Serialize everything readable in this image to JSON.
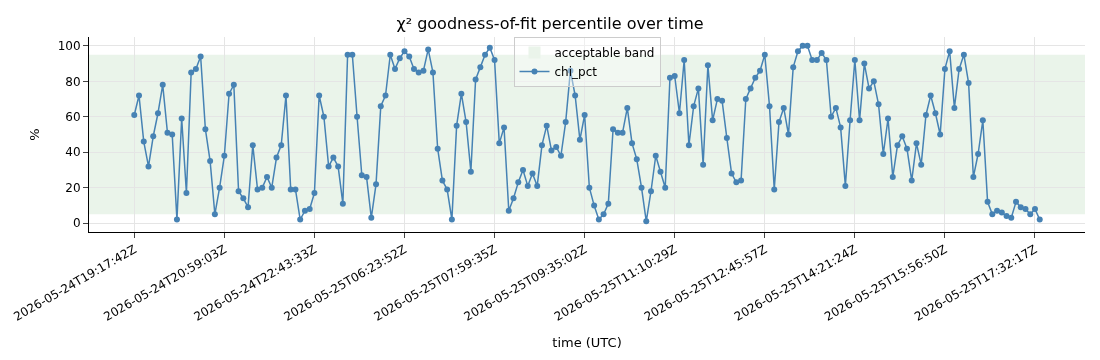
{
  "chart_data": {
    "type": "line",
    "title": "χ² goodness-of-fit percentile over time",
    "xlabel": "time (UTC)",
    "ylabel": "%",
    "categories": [
      "2026-05-24T19:17:42Z",
      null,
      null,
      null,
      null,
      null,
      null,
      null,
      null,
      null,
      null,
      null,
      null,
      null,
      null,
      null,
      null,
      null,
      null,
      "2026-05-24T20:59:03Z",
      null,
      null,
      null,
      null,
      null,
      null,
      null,
      null,
      null,
      null,
      null,
      null,
      null,
      null,
      null,
      null,
      null,
      null,
      "2026-05-24T22:43:33Z",
      null,
      null,
      null,
      null,
      null,
      null,
      null,
      null,
      null,
      null,
      null,
      null,
      null,
      null,
      null,
      null,
      null,
      null,
      "2026-05-25T06:23:52Z",
      null,
      null,
      null,
      null,
      null,
      null,
      null,
      null,
      null,
      null,
      null,
      null,
      null,
      null,
      null,
      null,
      null,
      null,
      "2026-05-25T07:59:35Z",
      null,
      null,
      null,
      null,
      null,
      null,
      null,
      null,
      null,
      null,
      null,
      null,
      null,
      null,
      null,
      null,
      null,
      null,
      "2026-05-25T09:35:02Z",
      null,
      null,
      null,
      null,
      null,
      null,
      null,
      null,
      null,
      null,
      null,
      null,
      null,
      null,
      null,
      null,
      null,
      null,
      "2026-05-25T11:10:29Z",
      null,
      null,
      null,
      null,
      null,
      null,
      null,
      null,
      null,
      null,
      null,
      null,
      null,
      null,
      null,
      null,
      null,
      null,
      "2026-05-25T12:45:57Z",
      null,
      null,
      null,
      null,
      null,
      null,
      null,
      null,
      null,
      null,
      null,
      null,
      null,
      null,
      null,
      null,
      null,
      null,
      "2026-05-25T14:21:24Z",
      null,
      null,
      null,
      null,
      null,
      null,
      null,
      null,
      null,
      null,
      null,
      null,
      null,
      null,
      null,
      null,
      null,
      null,
      "2026-05-25T15:56:50Z",
      null,
      null,
      null,
      null,
      null,
      null,
      null,
      null,
      null,
      null,
      null,
      null,
      null,
      null,
      null,
      null,
      null,
      null,
      "2026-05-25T17:32:17Z",
      null
    ],
    "series": [
      {
        "name": "chi_pct",
        "color": "#4682b4",
        "values": [
          61,
          72,
          46,
          32,
          49,
          62,
          78,
          51,
          50,
          2,
          59,
          17,
          85,
          87,
          94,
          53,
          35,
          5,
          20,
          38,
          73,
          78,
          18,
          14,
          9,
          44,
          19,
          20,
          26,
          20,
          37,
          44,
          72,
          19,
          19,
          2,
          7,
          8,
          17,
          72,
          60,
          32,
          37,
          32,
          11,
          95,
          95,
          60,
          27,
          26,
          3,
          22,
          66,
          72,
          95,
          87,
          93,
          97,
          94,
          87,
          85,
          86,
          98,
          85,
          42,
          24,
          19,
          2,
          55,
          73,
          57,
          29,
          81,
          88,
          95,
          99,
          92,
          45,
          54,
          7,
          14,
          23,
          30,
          21,
          28,
          21,
          44,
          55,
          41,
          43,
          38,
          57,
          86,
          72,
          47,
          61,
          20,
          10,
          2,
          5,
          11,
          53,
          51,
          51,
          65,
          45,
          36,
          20,
          1,
          18,
          38,
          29,
          20,
          82,
          83,
          62,
          92,
          44,
          66,
          76,
          33,
          89,
          58,
          70,
          69,
          48,
          28,
          23,
          24,
          70,
          76,
          82,
          86,
          95,
          66,
          19,
          57,
          65,
          50,
          88,
          97,
          100,
          100,
          92,
          92,
          96,
          92,
          60,
          65,
          54,
          21,
          58,
          92,
          58,
          90,
          76,
          80,
          67,
          39,
          59,
          26,
          44,
          49,
          42,
          24,
          45,
          33,
          61,
          72,
          62,
          50,
          87,
          97,
          65,
          87,
          95,
          79,
          26,
          39,
          58,
          12,
          5,
          7,
          6,
          4,
          3,
          12,
          9,
          8,
          5,
          8,
          2
        ]
      }
    ],
    "bands": [
      {
        "axis": "y",
        "from": 5,
        "to": 95,
        "label": "acceptable band",
        "color": "#eaf4ea"
      }
    ],
    "ylim": [
      -5,
      105
    ],
    "yticks": [
      0,
      20,
      40,
      60,
      80,
      100
    ],
    "grid": true,
    "legend": "top",
    "marker": "circle",
    "line_style": "solid"
  }
}
